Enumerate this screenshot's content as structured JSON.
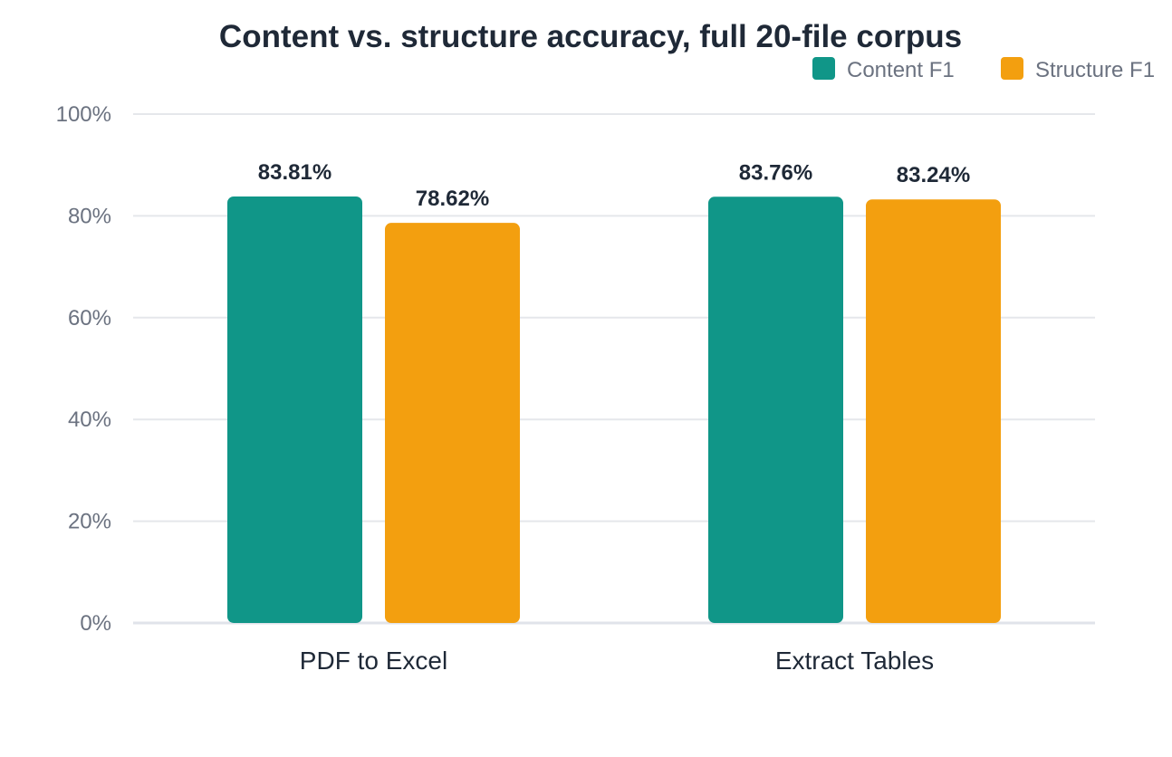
{
  "chart_data": {
    "type": "bar",
    "title": "Content vs. structure accuracy, full 20-file corpus",
    "categories": [
      "PDF to Excel",
      "Extract Tables"
    ],
    "series": [
      {
        "name": "Content F1",
        "color": "#109688",
        "values": [
          83.81,
          83.76
        ],
        "labels": [
          "83.81%",
          "83.76%"
        ]
      },
      {
        "name": "Structure F1",
        "color": "#f39f0f",
        "values": [
          78.62,
          83.24
        ],
        "labels": [
          "78.62%",
          "83.24%"
        ]
      }
    ],
    "ylim": [
      0,
      100
    ],
    "yticks": [
      0,
      20,
      40,
      60,
      80,
      100
    ],
    "ytick_labels": [
      "0%",
      "20%",
      "40%",
      "60%",
      "80%",
      "100%"
    ],
    "xlabel": "",
    "ylabel": "",
    "grid": true,
    "legend_position": "top-right"
  }
}
